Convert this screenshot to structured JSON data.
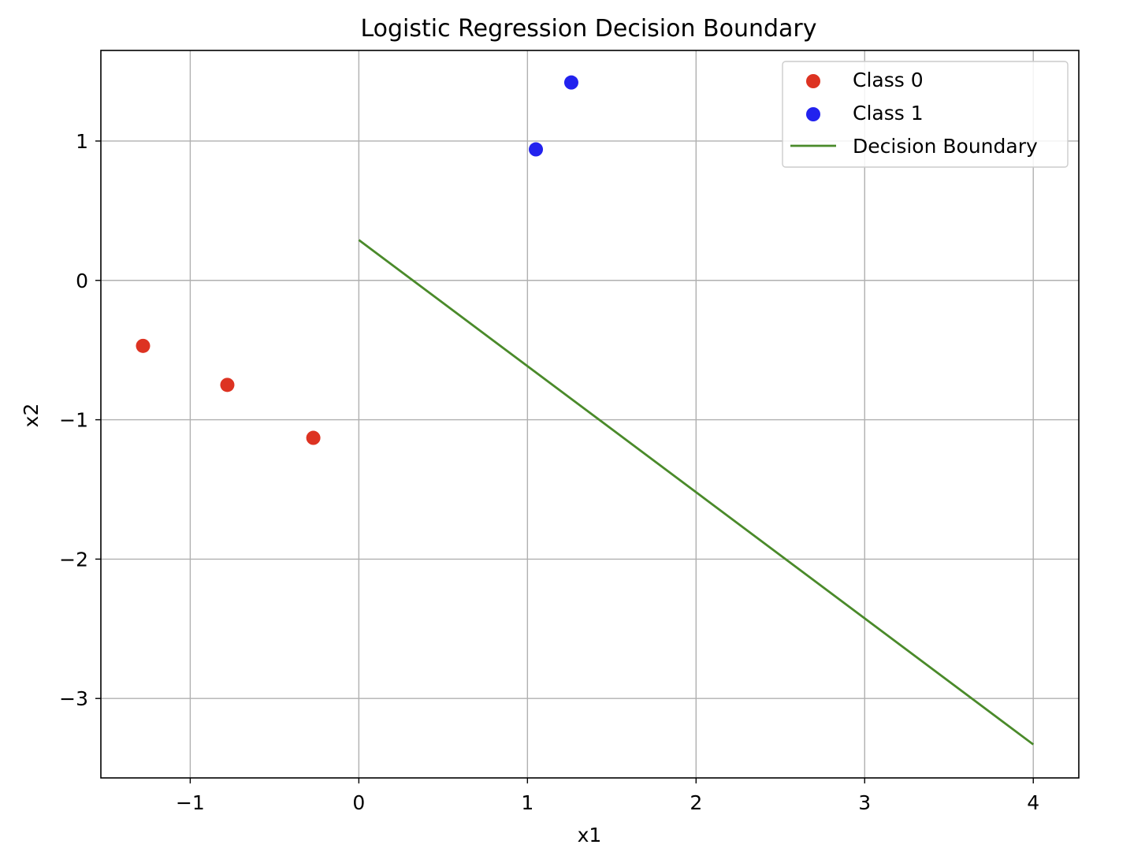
{
  "chart_data": {
    "type": "scatter",
    "title": "Logistic Regression Decision Boundary",
    "xlabel": "x1",
    "ylabel": "x2",
    "xlim": [
      -1.53,
      4.27
    ],
    "ylim": [
      -3.57,
      1.65
    ],
    "xticks": [
      -1,
      0,
      1,
      2,
      3,
      4
    ],
    "xtick_labels": [
      "−1",
      "0",
      "1",
      "2",
      "3",
      "4"
    ],
    "yticks": [
      -3,
      -2,
      -1,
      0,
      1
    ],
    "ytick_labels": [
      "−3",
      "−2",
      "−1",
      "0",
      "1"
    ],
    "grid": true,
    "legend_position": "top-right",
    "series": [
      {
        "name": "Class 0",
        "kind": "scatter",
        "color": "#dd3322",
        "points": [
          {
            "x": -1.28,
            "y": -0.47
          },
          {
            "x": -0.78,
            "y": -0.75
          },
          {
            "x": -0.27,
            "y": -1.13
          }
        ]
      },
      {
        "name": "Class 1",
        "kind": "scatter",
        "color": "#2222ee",
        "points": [
          {
            "x": 1.05,
            "y": 0.94
          },
          {
            "x": 1.26,
            "y": 1.42
          }
        ]
      },
      {
        "name": "Decision Boundary",
        "kind": "line",
        "color": "#4a8a2a",
        "points": [
          {
            "x": 0,
            "y": 0.29
          },
          {
            "x": 4,
            "y": -3.33
          }
        ]
      }
    ]
  }
}
